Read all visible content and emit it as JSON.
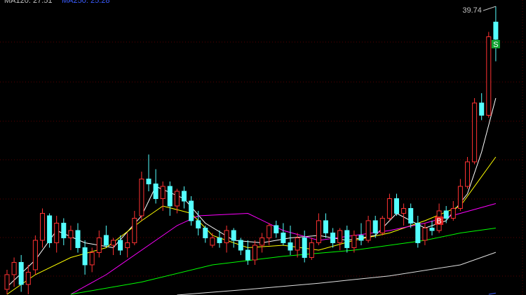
{
  "chart_data": {
    "type": "candlestick",
    "ylim": [
      27.97,
      40.0
    ],
    "up_color": "#ff3232",
    "down_color": "#54ffff",
    "legend": [
      {
        "text": "MA120: 27.51",
        "color": "#c0c0c0"
      },
      {
        "text": "MA250: 25.28",
        "color": "#3a5cff"
      }
    ],
    "open": [
      28.2,
      28.8,
      29.3,
      28.4,
      29.0,
      30.2,
      31.2,
      30.1,
      30.9,
      30.3,
      30.6,
      29.9,
      29.2,
      29.7,
      30.4,
      30.0,
      30.2,
      29.9,
      30.1,
      31.2,
      32.7,
      32.5,
      31.9,
      32.4,
      31.6,
      32.2,
      31.8,
      31.0,
      30.7,
      30.0,
      30.3,
      30.1,
      30.6,
      30.2,
      29.8,
      29.4,
      30.0,
      30.3,
      30.8,
      30.5,
      30.1,
      29.8,
      30.3,
      29.5,
      30.1,
      31.0,
      30.5,
      30.1,
      30.6,
      29.9,
      30.4,
      30.2,
      31.0,
      30.5,
      31.1,
      31.9,
      31.3,
      31.5,
      30.9,
      30.2,
      30.7,
      30.6,
      31.4,
      31.1,
      31.5,
      32.4,
      33.4,
      35.8,
      35.3,
      39.1
    ],
    "high": [
      29.0,
      29.5,
      29.6,
      29.2,
      30.4,
      31.5,
      31.3,
      31.2,
      31.1,
      30.8,
      30.9,
      30.2,
      29.9,
      30.6,
      30.8,
      30.3,
      30.4,
      30.5,
      31.4,
      33.0,
      33.7,
      33.1,
      32.6,
      32.6,
      32.3,
      32.4,
      32.0,
      31.4,
      30.8,
      30.5,
      30.6,
      30.8,
      30.7,
      30.3,
      30.2,
      30.2,
      30.5,
      30.9,
      31.0,
      30.9,
      30.8,
      30.5,
      30.6,
      30.3,
      31.3,
      31.3,
      30.7,
      30.7,
      30.8,
      30.6,
      30.9,
      31.2,
      31.2,
      31.2,
      32.1,
      32.1,
      31.7,
      31.7,
      31.2,
      30.9,
      31.0,
      31.7,
      31.6,
      31.8,
      32.7,
      33.6,
      36.0,
      36.2,
      38.7,
      39.74
    ],
    "low": [
      28.0,
      28.3,
      28.1,
      28.0,
      28.8,
      29.9,
      29.9,
      29.7,
      30.0,
      29.8,
      29.7,
      28.8,
      28.9,
      29.5,
      29.9,
      29.6,
      29.6,
      29.5,
      30.0,
      31.0,
      32.2,
      31.7,
      31.4,
      31.2,
      31.3,
      31.5,
      30.8,
      30.4,
      30.1,
      29.9,
      29.9,
      29.7,
      29.9,
      29.6,
      29.2,
      29.2,
      29.7,
      30.0,
      30.3,
      30.0,
      29.6,
      29.5,
      29.3,
      29.4,
      30.0,
      30.3,
      29.9,
      29.8,
      29.7,
      29.7,
      30.0,
      30.1,
      30.3,
      30.4,
      31.0,
      31.2,
      30.8,
      30.7,
      29.9,
      30.0,
      30.4,
      30.5,
      30.9,
      31.0,
      31.4,
      32.3,
      33.3,
      35.1,
      35.2,
      37.5
    ],
    "close": [
      28.8,
      29.3,
      28.4,
      28.9,
      30.2,
      31.3,
      30.1,
      30.9,
      30.3,
      30.6,
      29.9,
      29.2,
      29.7,
      30.3,
      30.0,
      30.2,
      29.8,
      30.1,
      31.1,
      32.7,
      32.5,
      31.9,
      32.4,
      31.6,
      32.2,
      31.8,
      31.0,
      30.7,
      30.3,
      30.3,
      30.1,
      30.6,
      30.2,
      29.8,
      29.4,
      30.0,
      30.3,
      30.8,
      30.5,
      30.1,
      29.8,
      30.3,
      29.5,
      30.1,
      31.0,
      30.5,
      30.1,
      30.6,
      29.9,
      30.4,
      30.2,
      31.0,
      30.5,
      31.1,
      31.9,
      31.3,
      31.5,
      30.9,
      30.1,
      30.7,
      30.6,
      31.4,
      31.1,
      31.5,
      32.4,
      33.4,
      35.8,
      35.3,
      38.5,
      38.4
    ],
    "lines": [
      {
        "color": "#ffffff",
        "x": [
          1,
          5,
          8,
          12,
          16,
          20,
          22,
          26,
          29,
          33,
          37,
          41,
          45,
          49,
          53,
          56,
          60,
          63,
          66,
          68,
          70
        ],
        "values": [
          28.3,
          29.4,
          30.6,
          30.1,
          29.9,
          31.2,
          32.4,
          31.9,
          30.9,
          30.2,
          30.1,
          30.3,
          30.4,
          30.2,
          30.4,
          31.3,
          30.7,
          31.0,
          32.1,
          33.8,
          36.0
        ]
      },
      {
        "color": "#ffff00",
        "x": [
          1,
          5,
          10,
          15,
          20,
          23,
          27,
          30,
          35,
          40,
          45,
          50,
          55,
          60,
          65,
          70
        ],
        "values": [
          28.0,
          28.8,
          29.5,
          29.9,
          31.0,
          31.6,
          31.3,
          30.4,
          29.9,
          30.0,
          29.8,
          30.2,
          30.5,
          31.0,
          31.6,
          33.6
        ]
      },
      {
        "color": "#ff00ff",
        "x": [
          10,
          15,
          20,
          25,
          28,
          35,
          40,
          45,
          50,
          55,
          60,
          65,
          70
        ],
        "values": [
          28.0,
          28.8,
          29.8,
          30.8,
          31.2,
          31.3,
          30.6,
          30.2,
          30.4,
          30.6,
          30.9,
          31.3,
          31.7
        ]
      },
      {
        "color": "#00ff00",
        "x": [
          10,
          20,
          30,
          40,
          50,
          60,
          65,
          70
        ],
        "values": [
          28.0,
          28.5,
          29.2,
          29.55,
          29.8,
          30.2,
          30.5,
          30.7
        ]
      },
      {
        "color": "#e0e0e0",
        "x": [
          25,
          35,
          45,
          55,
          65,
          70
        ],
        "values": [
          27.97,
          28.2,
          28.45,
          28.75,
          29.2,
          29.71
        ]
      },
      {
        "color": "#3a5cff",
        "x": [
          69,
          70
        ],
        "values": [
          28.0,
          28.05
        ]
      }
    ],
    "max_label": {
      "text": "39.74",
      "index": 70
    },
    "signals": [
      {
        "label": "B",
        "index": 62,
        "value": 31.0,
        "color": "#e02020"
      },
      {
        "label": "S",
        "index": 70,
        "value": 38.2,
        "color": "#10a030"
      }
    ]
  }
}
